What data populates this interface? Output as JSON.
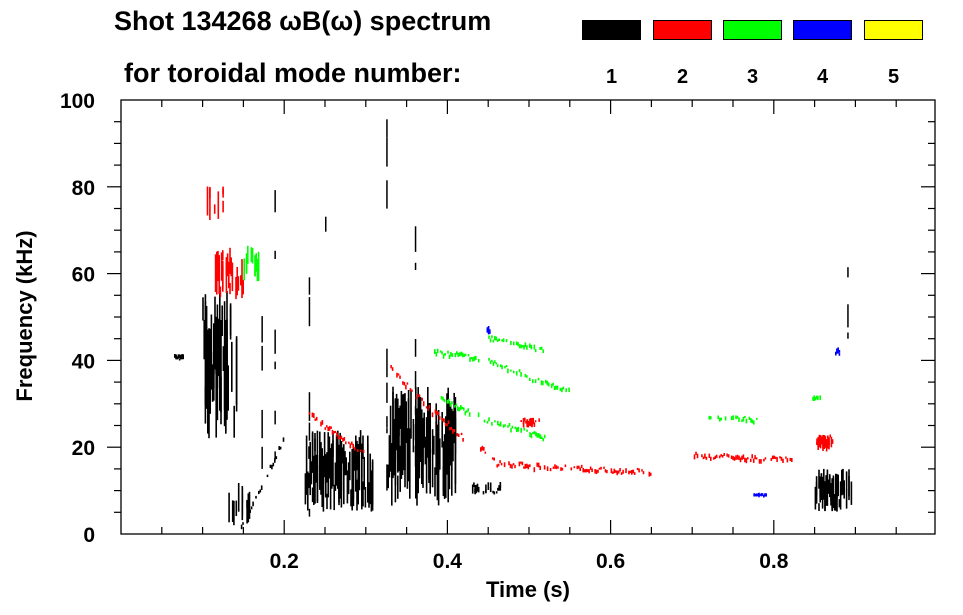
{
  "chart_data": {
    "type": "heatmap",
    "title": "Shot 134268 ωB(ω) spectrum",
    "legend_title": "for toroidal mode number:",
    "xlabel": "Time (s)",
    "ylabel": "Frequency (kHz)",
    "xlim": [
      0,
      1.0
    ],
    "ylim": [
      0,
      100
    ],
    "xticks": [
      0.2,
      0.4,
      0.6,
      0.8
    ],
    "xtick_labels": [
      "0.2",
      "0.4",
      "0.6",
      "0.8"
    ],
    "yticks": [
      0,
      20,
      40,
      60,
      80,
      100
    ],
    "ytick_labels": [
      "0",
      "20",
      "40",
      "60",
      "80",
      "100"
    ],
    "legend_placement": "top-right",
    "series": [
      {
        "name": "1",
        "color": "#000000",
        "blobs": [
          {
            "t": [
              0.098,
              0.142
            ],
            "f": [
              22,
              56
            ],
            "density": 0.85
          },
          {
            "t": [
              0.065,
              0.076
            ],
            "f": [
              40,
              41.5
            ],
            "density": 0.9
          },
          {
            "t": [
              0.225,
              0.31
            ],
            "f": [
              5,
              24
            ],
            "density": 0.8
          },
          {
            "t": [
              0.325,
              0.41
            ],
            "f": [
              6,
              34
            ],
            "density": 0.8
          },
          {
            "t": [
              0.85,
              0.895
            ],
            "f": [
              5,
              15
            ],
            "density": 0.85
          },
          {
            "t": [
              0.13,
              0.16
            ],
            "f": [
              2,
              12
            ],
            "density": 0.3
          },
          {
            "t": [
              0.43,
              0.47
            ],
            "f": [
              9,
              12
            ],
            "density": 0.25
          }
        ],
        "streaks": [
          [
            0.188,
            10,
            78
          ],
          [
            0.23,
            4,
            62
          ],
          [
            0.325,
            10,
            93
          ],
          [
            0.36,
            5,
            68
          ],
          [
            0.172,
            15,
            45
          ],
          [
            0.25,
            60,
            90
          ],
          [
            0.89,
            45,
            75
          ]
        ],
        "tracks": [
          {
            "points": [
              [
                0.145,
                1
              ],
              [
                0.175,
                12
              ],
              [
                0.2,
                22
              ]
            ],
            "width": 1.5
          }
        ]
      },
      {
        "name": "2",
        "color": "#ff0000",
        "blobs": [
          {
            "t": [
              0.115,
              0.15
            ],
            "f": [
              54,
              66
            ],
            "density": 0.45
          },
          {
            "t": [
              0.488,
              0.512
            ],
            "f": [
              24.5,
              27
            ],
            "density": 0.95
          },
          {
            "t": [
              0.852,
              0.872
            ],
            "f": [
              19,
              23
            ],
            "density": 0.95
          },
          {
            "t": [
              0.105,
              0.125
            ],
            "f": [
              72,
              82
            ],
            "density": 0.15
          }
        ],
        "streaks": [],
        "tracks": [
          {
            "points": [
              [
                0.33,
                38
              ],
              [
                0.37,
                30
              ],
              [
                0.42,
                22
              ]
            ],
            "width": 1.5
          },
          {
            "points": [
              [
                0.23,
                28
              ],
              [
                0.26,
                23
              ],
              [
                0.3,
                18
              ]
            ],
            "width": 1.5
          },
          {
            "points": [
              [
                0.44,
                20
              ],
              [
                0.46,
                16
              ],
              [
                0.6,
                14.5
              ],
              [
                0.65,
                14
              ]
            ],
            "width": 1.2
          },
          {
            "points": [
              [
                0.7,
                18
              ],
              [
                0.76,
                17.5
              ],
              [
                0.83,
                17
              ]
            ],
            "width": 1.2
          }
        ]
      },
      {
        "name": "3",
        "color": "#00ff00",
        "blobs": [
          {
            "t": [
              0.15,
              0.17
            ],
            "f": [
              58,
              67
            ],
            "density": 0.2
          },
          {
            "t": [
              0.847,
              0.857
            ],
            "f": [
              30.5,
              32
            ],
            "density": 0.8
          }
        ],
        "streaks": [],
        "tracks": [
          {
            "points": [
              [
                0.38,
                42
              ],
              [
                0.45,
                40
              ],
              [
                0.5,
                36
              ],
              [
                0.55,
                33
              ]
            ],
            "width": 1.2
          },
          {
            "points": [
              [
                0.45,
                45
              ],
              [
                0.5,
                43
              ],
              [
                0.52,
                42
              ]
            ],
            "width": 1
          },
          {
            "points": [
              [
                0.39,
                31
              ],
              [
                0.45,
                26
              ],
              [
                0.52,
                22
              ]
            ],
            "width": 1.2
          },
          {
            "points": [
              [
                0.72,
                27
              ],
              [
                0.78,
                26
              ]
            ],
            "width": 1
          }
        ]
      },
      {
        "name": "4",
        "color": "#0000ff",
        "blobs": [
          {
            "t": [
              0.448,
              0.452
            ],
            "f": [
              46,
              48
            ],
            "density": 1
          },
          {
            "t": [
              0.775,
              0.79
            ],
            "f": [
              8.5,
              9.5
            ],
            "density": 0.8
          },
          {
            "t": [
              0.875,
              0.88
            ],
            "f": [
              41,
              43
            ],
            "density": 1
          }
        ],
        "streaks": [],
        "tracks": []
      },
      {
        "name": "5",
        "color": "#ffff00",
        "blobs": [],
        "streaks": [],
        "tracks": []
      }
    ]
  }
}
